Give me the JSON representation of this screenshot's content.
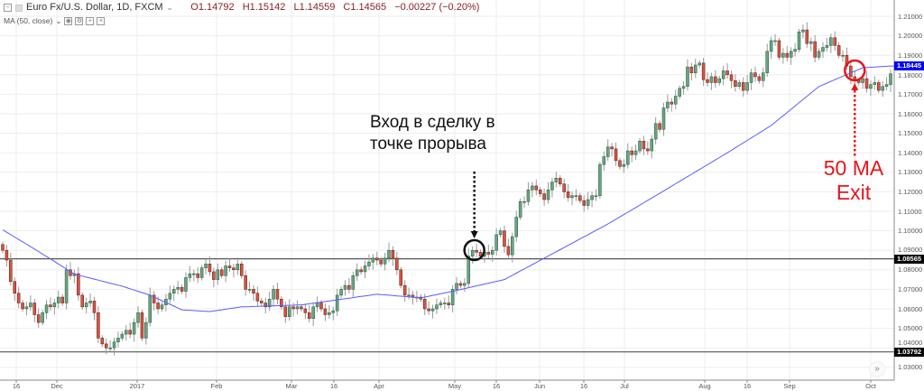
{
  "header": {
    "symbol": "Euro Fx/U.S. Dollar, 1D, FXCM",
    "open": "O1.14792",
    "high": "H1.15142",
    "low": "L1.14559",
    "close": "C1.14565",
    "change": "−0.00227 (−0.20%)",
    "indicator": "MA (50, close)"
  },
  "colors": {
    "up": "#6ba583",
    "down": "#d75442",
    "up_border": "#225437",
    "down_border": "#5b1a13",
    "ma": "#5b5bff",
    "annotation_red": "#e8161b",
    "ma_tag": "#0000ff"
  },
  "price_axis": [
    "1.21000",
    "1.20000",
    "1.19000",
    "1.18000",
    "1.17000",
    "1.16000",
    "1.15000",
    "1.14000",
    "1.13000",
    "1.12000",
    "1.11000",
    "1.10000",
    "1.09000",
    "1.08000",
    "1.07000",
    "1.06000",
    "1.05000",
    "1.04000",
    "1.03000"
  ],
  "price_tags": {
    "ma_value": "1.18445",
    "level_high": "1.08565",
    "level_low": "1.03792"
  },
  "time_axis": [
    "16",
    "Dec",
    "2017",
    "Feb",
    "Mar",
    "16",
    "Apr",
    "May",
    "16",
    "Jun",
    "16",
    "Jul",
    "Aug",
    "16",
    "Sep",
    "Oct"
  ],
  "annotations": {
    "entry_line1": "Вход в сделку в",
    "entry_line2": "точке прорыва",
    "exit_line1": "50 MA",
    "exit_line2": "Exit"
  },
  "chart_data": {
    "type": "candlestick",
    "ylim": [
      1.025,
      1.215
    ],
    "horizontal_levels": [
      1.08565,
      1.03792
    ],
    "closes": [
      1.09,
      1.085,
      1.074,
      1.068,
      1.063,
      1.06,
      1.061,
      1.063,
      1.057,
      1.053,
      1.058,
      1.062,
      1.061,
      1.063,
      1.066,
      1.063,
      1.08,
      1.077,
      1.078,
      1.067,
      1.061,
      1.063,
      1.064,
      1.058,
      1.045,
      1.042,
      1.04,
      1.04,
      1.043,
      1.045,
      1.047,
      1.049,
      1.047,
      1.053,
      1.058,
      1.045,
      1.053,
      1.067,
      1.063,
      1.06,
      1.062,
      1.065,
      1.068,
      1.07,
      1.071,
      1.069,
      1.076,
      1.078,
      1.078,
      1.076,
      1.081,
      1.083,
      1.079,
      1.075,
      1.08,
      1.077,
      1.082,
      1.081,
      1.08,
      1.083,
      1.077,
      1.07,
      1.07,
      1.068,
      1.064,
      1.063,
      1.061,
      1.065,
      1.07,
      1.065,
      1.061,
      1.056,
      1.061,
      1.06,
      1.061,
      1.06,
      1.058,
      1.055,
      1.061,
      1.063,
      1.06,
      1.057,
      1.058,
      1.059,
      1.067,
      1.07,
      1.072,
      1.07,
      1.077,
      1.08,
      1.079,
      1.082,
      1.084,
      1.086,
      1.085,
      1.083,
      1.086,
      1.09,
      1.086,
      1.08,
      1.072,
      1.067,
      1.067,
      1.066,
      1.066,
      1.065,
      1.06,
      1.059,
      1.06,
      1.062,
      1.063,
      1.063,
      1.062,
      1.07,
      1.073,
      1.072,
      1.073,
      1.087,
      1.09,
      1.089,
      1.087,
      1.089,
      1.088,
      1.09,
      1.098,
      1.1,
      1.092,
      1.0877,
      1.097,
      1.107,
      1.115,
      1.115,
      1.121,
      1.123,
      1.121,
      1.119,
      1.116,
      1.121,
      1.125,
      1.127,
      1.124,
      1.12,
      1.117,
      1.118,
      1.118,
      1.1155,
      1.113,
      1.116,
      1.118,
      1.118,
      1.134,
      1.138,
      1.143,
      1.142,
      1.136,
      1.133,
      1.134,
      1.141,
      1.139,
      1.141,
      1.146,
      1.142,
      1.141,
      1.147,
      1.155,
      1.152,
      1.163,
      1.166,
      1.165,
      1.169,
      1.173,
      1.174,
      1.184,
      1.181,
      1.185,
      1.186,
      1.1775,
      1.176,
      1.179,
      1.176,
      1.178,
      1.182,
      1.18,
      1.177,
      1.174,
      1.176,
      1.172,
      1.176,
      1.181,
      1.179,
      1.177,
      1.181,
      1.192,
      1.1975,
      1.1975,
      1.189,
      1.191,
      1.189,
      1.192,
      1.193,
      1.202,
      1.203,
      1.196,
      1.197,
      1.189,
      1.192,
      1.194,
      1.195,
      1.199,
      1.195,
      1.19,
      1.19,
      1.1845,
      1.179,
      1.177,
      1.176,
      1.178,
      1.173,
      1.175,
      1.176,
      1.172,
      1.174,
      1.175,
      1.1805
    ],
    "ma50": [
      [
        0,
        1.1005
      ],
      [
        9,
        1.0894
      ],
      [
        18,
        1.0778
      ],
      [
        30,
        1.0716
      ],
      [
        37,
        1.067
      ],
      [
        45,
        1.0595
      ],
      [
        52,
        1.0586
      ],
      [
        60,
        1.061
      ],
      [
        75,
        1.062
      ],
      [
        94,
        1.0675
      ],
      [
        105,
        1.0656
      ],
      [
        113,
        1.069
      ],
      [
        126,
        1.075
      ],
      [
        152,
        1.1035
      ],
      [
        164,
        1.118
      ],
      [
        182,
        1.14
      ],
      [
        193,
        1.154
      ],
      [
        205,
        1.174
      ],
      [
        216,
        1.1836
      ],
      [
        223,
        1.1845
      ]
    ]
  }
}
